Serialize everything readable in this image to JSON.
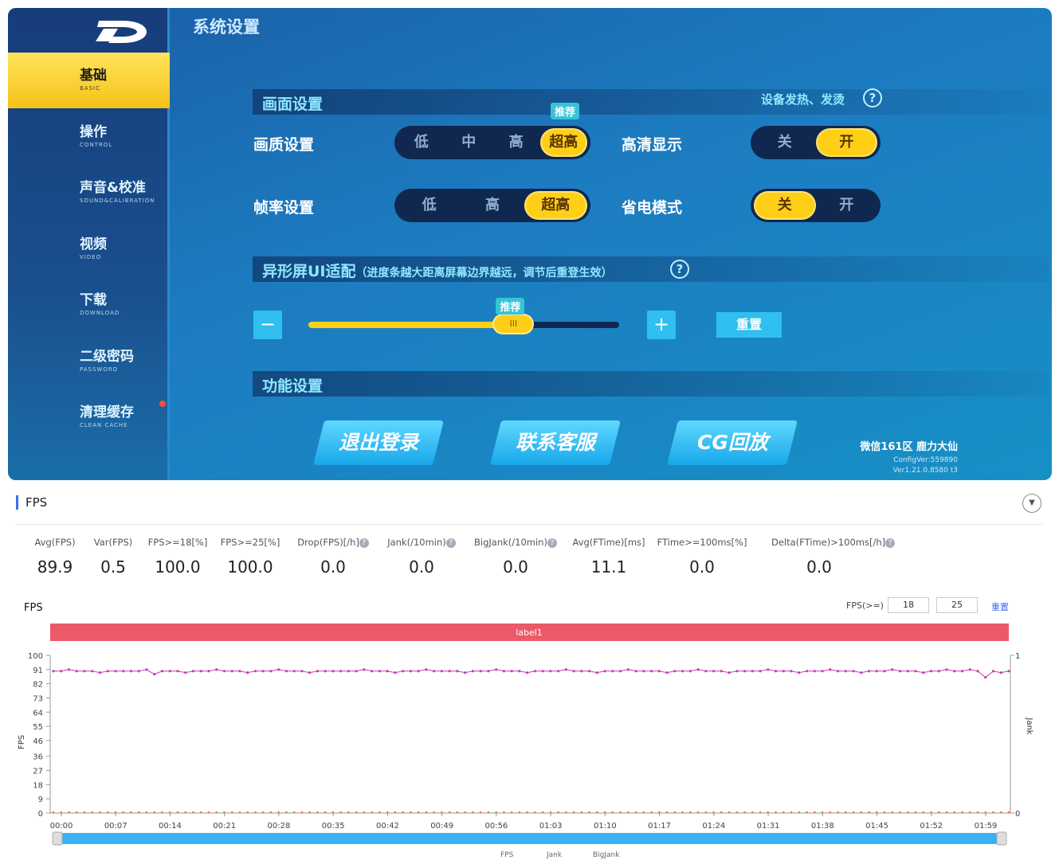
{
  "game": {
    "title": "系统设置",
    "sidebar": [
      {
        "cn": "基础",
        "en": "BASIC",
        "active": true
      },
      {
        "cn": "操作",
        "en": "CONTROL"
      },
      {
        "cn": "声音&校准",
        "en": "SOUND&CALIBRATION"
      },
      {
        "cn": "视频",
        "en": "VIDEO"
      },
      {
        "cn": "下载",
        "en": "DOWNLOAD"
      },
      {
        "cn": "二级密码",
        "en": "PASSWORD"
      },
      {
        "cn": "清理缓存",
        "en": "CLEAN CACHE",
        "notification_dot": true
      }
    ],
    "display_section": "画面设置",
    "device_heat_link": "设备发热、发烫",
    "quality": {
      "label": "画质设置",
      "options": [
        "低",
        "中",
        "高",
        "超高"
      ],
      "selected": "超高",
      "badge": "推荐"
    },
    "hd": {
      "label": "高清显示",
      "options": [
        "关",
        "开"
      ],
      "selected": "开"
    },
    "framerate": {
      "label": "帧率设置",
      "options": [
        "低",
        "高",
        "超高"
      ],
      "selected": "超高"
    },
    "power_save": {
      "label": "省电模式",
      "options": [
        "关",
        "开"
      ],
      "selected": "关"
    },
    "notch_section": "异形屏UI适配",
    "notch_hint": "（进度条越大距离屏幕边界越远，调节后重登生效）",
    "slider": {
      "minus": "−",
      "plus": "+",
      "badge": "推荐",
      "value_fraction": 0.66,
      "reset": "重置"
    },
    "function_section": "功能设置",
    "buttons": [
      "退出登录",
      "联系客服",
      "CG回放"
    ],
    "server": "微信161区 鹿力大仙",
    "config_ver": "ConfigVer:559890",
    "ver": "Ver1.21.0.8580 t3",
    "help": "?"
  },
  "fps_panel": {
    "title": "FPS",
    "stats": [
      {
        "label": "Avg(FPS)",
        "value": "89.9"
      },
      {
        "label": "Var(FPS)",
        "value": "0.5"
      },
      {
        "label": "FPS>=18[%]",
        "value": "100.0"
      },
      {
        "label": "FPS>=25[%]",
        "value": "100.0"
      },
      {
        "label": "Drop(FPS)[/h]",
        "value": "0.0",
        "help": true
      },
      {
        "label": "Jank(/10min)",
        "value": "0.0",
        "help": true
      },
      {
        "label": "BigJank(/10min)",
        "value": "0.0",
        "help": true
      },
      {
        "label": "Avg(FTime)[ms]",
        "value": "11.1"
      },
      {
        "label": "FTime>=100ms[%]",
        "value": "0.0"
      },
      {
        "label": "Delta(FTime)>100ms[/h]",
        "value": "0.0",
        "help": true
      }
    ],
    "threshold_label": "FPS(>=)",
    "threshold_1": "18",
    "threshold_2": "25",
    "reset": "重置"
  },
  "chart_data": {
    "type": "line",
    "title": "FPS",
    "band_label": "label1",
    "ylabel": "FPS",
    "y2label": "Jank",
    "ylim": [
      0,
      100
    ],
    "y2lim": [
      0,
      1
    ],
    "yticks": [
      0,
      9,
      18,
      27,
      36,
      46,
      55,
      64,
      73,
      82,
      91,
      100
    ],
    "y2ticks": [
      0,
      1
    ],
    "xlim_seconds": [
      0,
      123
    ],
    "xticks": [
      "00:00",
      "00:07",
      "00:14",
      "00:21",
      "00:28",
      "00:35",
      "00:42",
      "00:49",
      "00:56",
      "01:03",
      "01:10",
      "01:17",
      "01:24",
      "01:31",
      "01:38",
      "01:45",
      "01:52",
      "01:59"
    ],
    "legend": [
      "FPS",
      "Jank",
      "BigJank"
    ],
    "colors": {
      "fps": "#c23fb6",
      "jank": "#f07a3a",
      "band": "#eb5a68",
      "zoom": "#38b2f5"
    },
    "series": [
      {
        "name": "FPS",
        "values": [
          90,
          90,
          91,
          90,
          90,
          90,
          89,
          90,
          90,
          90,
          90,
          90,
          91,
          88,
          90,
          90,
          90,
          89,
          90,
          90,
          90,
          91,
          90,
          90,
          90,
          89,
          90,
          90,
          90,
          91,
          90,
          90,
          90,
          89,
          90,
          90,
          90,
          90,
          90,
          90,
          91,
          90,
          90,
          90,
          89,
          90,
          90,
          90,
          91,
          90,
          90,
          90,
          90,
          89,
          90,
          90,
          90,
          91,
          90,
          90,
          90,
          89,
          90,
          90,
          90,
          90,
          91,
          90,
          90,
          90,
          89,
          90,
          90,
          90,
          91,
          90,
          90,
          90,
          90,
          89,
          90,
          90,
          90,
          91,
          90,
          90,
          90,
          89,
          90,
          90,
          90,
          90,
          91,
          90,
          90,
          90,
          89,
          90,
          90,
          90,
          91,
          90,
          90,
          90,
          89,
          90,
          90,
          90,
          91,
          90,
          90,
          90,
          89,
          90,
          90,
          91,
          90,
          90,
          91,
          90,
          86,
          90,
          89,
          90
        ]
      },
      {
        "name": "Jank",
        "axis": "right",
        "values": [
          0,
          0,
          0,
          0,
          0,
          0,
          0,
          0,
          0,
          0,
          0,
          0,
          0,
          0,
          0,
          0,
          0,
          0,
          0,
          0,
          0,
          0,
          0,
          0,
          0,
          0,
          0,
          0,
          0,
          0,
          0,
          0,
          0,
          0,
          0,
          0,
          0,
          0,
          0,
          0,
          0,
          0,
          0,
          0,
          0,
          0,
          0,
          0,
          0,
          0,
          0,
          0,
          0,
          0,
          0,
          0,
          0,
          0,
          0,
          0,
          0,
          0,
          0,
          0,
          0,
          0,
          0,
          0,
          0,
          0,
          0,
          0,
          0,
          0,
          0,
          0,
          0,
          0,
          0,
          0,
          0,
          0,
          0,
          0,
          0,
          0,
          0,
          0,
          0,
          0,
          0,
          0,
          0,
          0,
          0,
          0,
          0,
          0,
          0,
          0,
          0,
          0,
          0,
          0,
          0,
          0,
          0,
          0,
          0,
          0,
          0,
          0,
          0,
          0,
          0,
          0,
          0,
          0,
          0,
          0,
          0,
          0,
          0,
          0
        ]
      }
    ]
  }
}
